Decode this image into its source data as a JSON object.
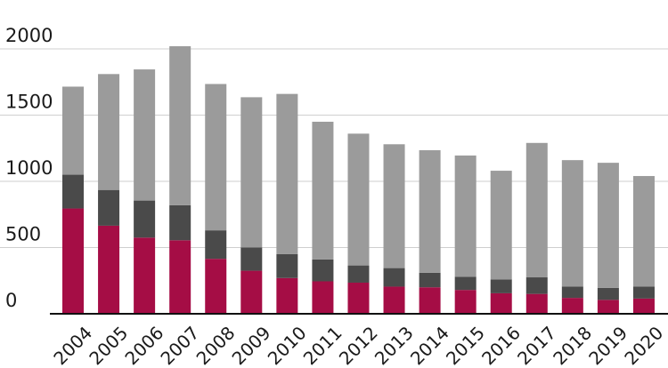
{
  "chart_data": {
    "type": "bar",
    "stacked": true,
    "title": "",
    "xlabel": "",
    "ylabel": "",
    "ylim": [
      0,
      2000
    ],
    "yticks": [
      0,
      500,
      1000,
      1500,
      2000
    ],
    "grid": true,
    "legend": "none",
    "categories": [
      "2004",
      "2005",
      "2006",
      "2007",
      "2008",
      "2009",
      "2010",
      "2011",
      "2012",
      "2013",
      "2014",
      "2015",
      "2016",
      "2017",
      "2018",
      "2019",
      "2020"
    ],
    "series": [
      {
        "color": "#a50d45",
        "values": [
          795,
          665,
          575,
          555,
          415,
          325,
          270,
          245,
          235,
          205,
          200,
          180,
          155,
          150,
          120,
          105,
          115
        ]
      },
      {
        "color": "#4a4a4a",
        "values": [
          255,
          270,
          280,
          265,
          215,
          175,
          180,
          165,
          130,
          140,
          110,
          100,
          105,
          125,
          85,
          90,
          90
        ]
      },
      {
        "color": "#9b9b9b",
        "values": [
          665,
          875,
          990,
          1200,
          1105,
          1135,
          1210,
          1040,
          995,
          935,
          925,
          915,
          820,
          1015,
          955,
          945,
          835
        ]
      }
    ]
  }
}
